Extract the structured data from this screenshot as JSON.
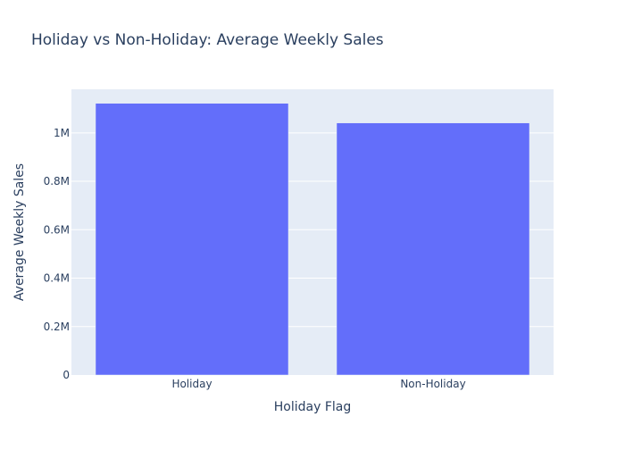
{
  "chart_data": {
    "type": "bar",
    "title": "Holiday vs Non-Holiday: Average Weekly Sales",
    "xlabel": "Holiday Flag",
    "ylabel": "Average Weekly Sales",
    "categories": [
      "Holiday",
      "Non-Holiday"
    ],
    "values": [
      1122000,
      1041000
    ],
    "ylim": [
      0,
      1180000
    ],
    "yticks": [
      0,
      200000,
      400000,
      600000,
      800000,
      1000000
    ],
    "ytick_labels": [
      "0",
      "0.2M",
      "0.4M",
      "0.6M",
      "0.8M",
      "1M"
    ],
    "grid": true,
    "legend": "none",
    "colors": {
      "bar": "#636efa",
      "plot_background": "#e5ecf6",
      "grid": "#ffffff",
      "text": "#2a3f5f"
    }
  }
}
